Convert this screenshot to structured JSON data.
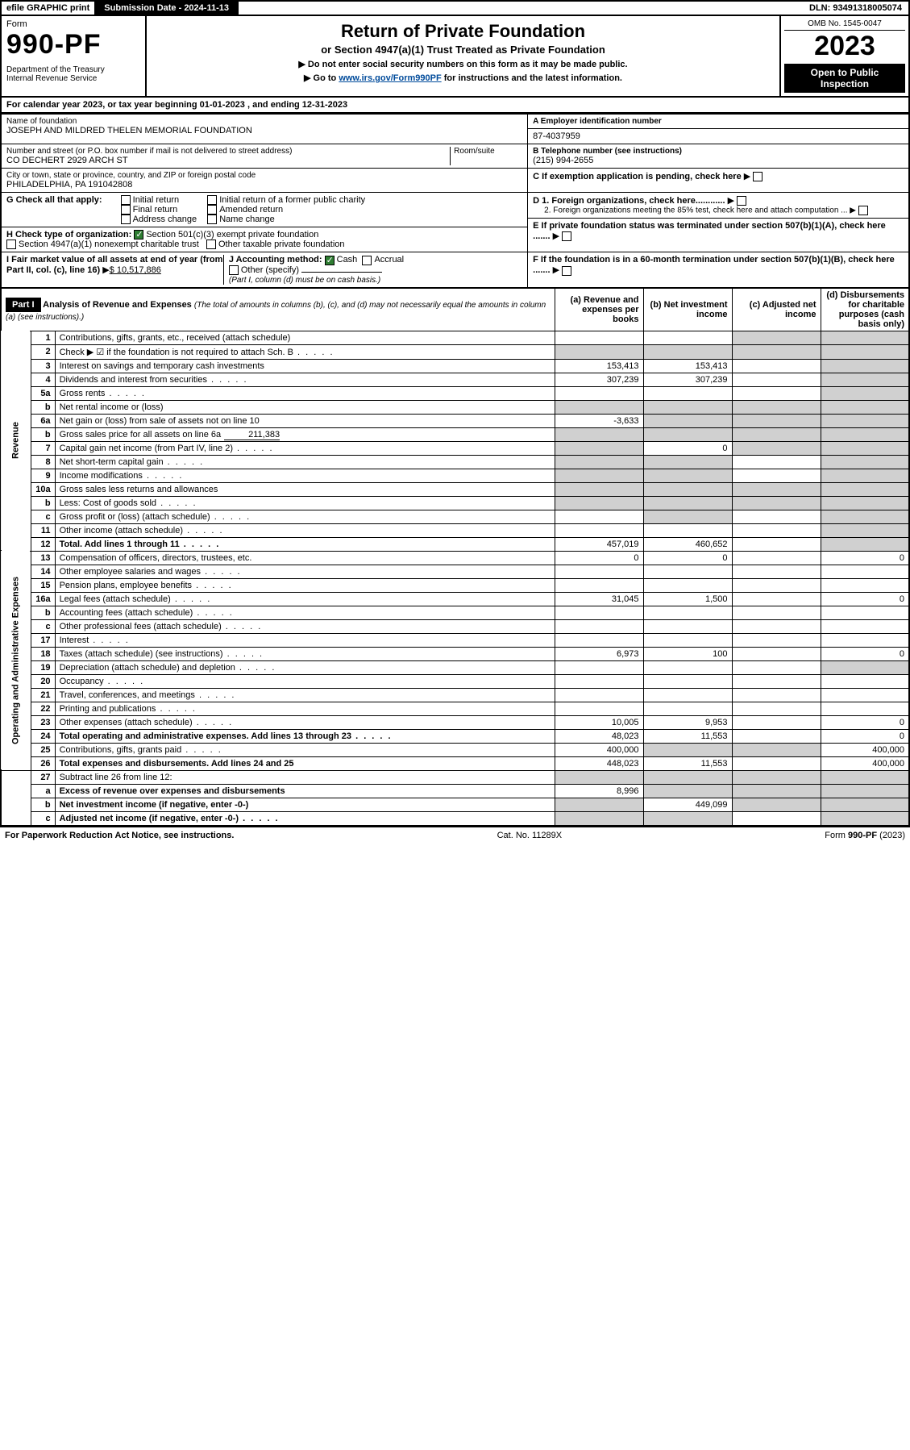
{
  "topbar": {
    "efile": "efile GRAPHIC print",
    "subdate_label": "Submission Date - 2024-11-13",
    "dln": "DLN: 93491318005074"
  },
  "header": {
    "form_label": "Form",
    "form_number": "990-PF",
    "dept": "Department of the Treasury\nInternal Revenue Service",
    "title": "Return of Private Foundation",
    "subtitle": "or Section 4947(a)(1) Trust Treated as Private Foundation",
    "instr1": "▶ Do not enter social security numbers on this form as it may be made public.",
    "instr2_pre": "▶ Go to ",
    "instr2_link": "www.irs.gov/Form990PF",
    "instr2_post": " for instructions and the latest information.",
    "omb": "OMB No. 1545-0047",
    "year": "2023",
    "open": "Open to Public Inspection"
  },
  "cal_year": "For calendar year 2023, or tax year beginning 01-01-2023                                , and ending 12-31-2023",
  "info": {
    "name_label": "Name of foundation",
    "name": "JOSEPH AND MILDRED THELEN MEMORIAL FOUNDATION",
    "ein_label": "A Employer identification number",
    "ein": "87-4037959",
    "addr_label": "Number and street (or P.O. box number if mail is not delivered to street address)",
    "addr": "CO DECHERT 2929 ARCH ST",
    "room_label": "Room/suite",
    "room": "",
    "phone_label": "B Telephone number (see instructions)",
    "phone": "(215) 994-2655",
    "city_label": "City or town, state or province, country, and ZIP or foreign postal code",
    "city": "PHILADELPHIA, PA  191042808",
    "c_label": "C If exemption application is pending, check here",
    "g_label": "G Check all that apply:",
    "g_initial": "Initial return",
    "g_final": "Final return",
    "g_addr": "Address change",
    "g_initial_former": "Initial return of a former public charity",
    "g_amended": "Amended return",
    "g_name": "Name change",
    "d1": "D 1. Foreign organizations, check here............",
    "d2": "2. Foreign organizations meeting the 85% test, check here and attach computation ...",
    "h_label": "H Check type of organization:",
    "h_501": "Section 501(c)(3) exempt private foundation",
    "h_4947": "Section 4947(a)(1) nonexempt charitable trust",
    "h_other": "Other taxable private foundation",
    "e_label": "E  If private foundation status was terminated under section 507(b)(1)(A), check here .......",
    "i_label": "I Fair market value of all assets at end of year (from Part II, col. (c), line 16)",
    "i_val": "$  10,517,886",
    "j_label": "J Accounting method:",
    "j_cash": "Cash",
    "j_accrual": "Accrual",
    "j_other": "Other (specify)",
    "j_note": "(Part I, column (d) must be on cash basis.)",
    "f_label": "F  If the foundation is in a 60-month termination under section 507(b)(1)(B), check here ......."
  },
  "part1": {
    "label": "Part I",
    "title": "Analysis of Revenue and Expenses",
    "title_note": "(The total of amounts in columns (b), (c), and (d) may not necessarily equal the amounts in column (a) (see instructions).)",
    "col_a": "(a)  Revenue and expenses per books",
    "col_b": "(b)  Net investment income",
    "col_c": "(c)  Adjusted net income",
    "col_d": "(d)  Disbursements for charitable purposes (cash basis only)"
  },
  "sections": {
    "revenue": "Revenue",
    "expenses": "Operating and Administrative Expenses"
  },
  "rows": [
    {
      "n": "1",
      "d": "Contributions, gifts, grants, etc., received (attach schedule)",
      "a": "",
      "b": "",
      "c": "shaded",
      "dv": "shaded"
    },
    {
      "n": "2",
      "d": "Check ▶ ☑ if the foundation is not required to attach Sch. B",
      "dots": true,
      "a": "shaded",
      "b": "shaded",
      "c": "shaded",
      "dv": "shaded"
    },
    {
      "n": "3",
      "d": "Interest on savings and temporary cash investments",
      "a": "153,413",
      "b": "153,413",
      "c": "",
      "dv": "shaded"
    },
    {
      "n": "4",
      "d": "Dividends and interest from securities",
      "dots": true,
      "a": "307,239",
      "b": "307,239",
      "c": "",
      "dv": "shaded"
    },
    {
      "n": "5a",
      "d": "Gross rents",
      "dots": true,
      "a": "",
      "b": "",
      "c": "",
      "dv": "shaded"
    },
    {
      "n": "b",
      "d": "Net rental income or (loss)",
      "sub": true,
      "a": "shaded",
      "b": "shaded",
      "c": "shaded",
      "dv": "shaded"
    },
    {
      "n": "6a",
      "d": "Net gain or (loss) from sale of assets not on line 10",
      "a": "-3,633",
      "b": "shaded",
      "c": "shaded",
      "dv": "shaded"
    },
    {
      "n": "b",
      "d": "Gross sales price for all assets on line 6a",
      "sub": true,
      "inline": "211,383",
      "a": "shaded",
      "b": "shaded",
      "c": "shaded",
      "dv": "shaded"
    },
    {
      "n": "7",
      "d": "Capital gain net income (from Part IV, line 2)",
      "dots": true,
      "a": "shaded",
      "b": "0",
      "c": "shaded",
      "dv": "shaded"
    },
    {
      "n": "8",
      "d": "Net short-term capital gain",
      "dots": true,
      "a": "shaded",
      "b": "shaded",
      "c": "",
      "dv": "shaded"
    },
    {
      "n": "9",
      "d": "Income modifications",
      "dots": true,
      "a": "shaded",
      "b": "shaded",
      "c": "",
      "dv": "shaded"
    },
    {
      "n": "10a",
      "d": "Gross sales less returns and allowances",
      "sub": true,
      "a": "shaded",
      "b": "shaded",
      "c": "shaded",
      "dv": "shaded"
    },
    {
      "n": "b",
      "d": "Less: Cost of goods sold",
      "dots": true,
      "sub": true,
      "a": "shaded",
      "b": "shaded",
      "c": "shaded",
      "dv": "shaded"
    },
    {
      "n": "c",
      "d": "Gross profit or (loss) (attach schedule)",
      "dots": true,
      "a": "",
      "b": "shaded",
      "c": "",
      "dv": "shaded"
    },
    {
      "n": "11",
      "d": "Other income (attach schedule)",
      "dots": true,
      "a": "",
      "b": "",
      "c": "",
      "dv": "shaded"
    },
    {
      "n": "12",
      "d": "Total. Add lines 1 through 11",
      "dots": true,
      "bold": true,
      "a": "457,019",
      "b": "460,652",
      "c": "",
      "dv": "shaded"
    },
    {
      "n": "13",
      "d": "Compensation of officers, directors, trustees, etc.",
      "a": "0",
      "b": "0",
      "c": "",
      "dv": "0",
      "sec": "exp"
    },
    {
      "n": "14",
      "d": "Other employee salaries and wages",
      "dots": true,
      "a": "",
      "b": "",
      "c": "",
      "dv": "",
      "sec": "exp"
    },
    {
      "n": "15",
      "d": "Pension plans, employee benefits",
      "dots": true,
      "a": "",
      "b": "",
      "c": "",
      "dv": "",
      "sec": "exp"
    },
    {
      "n": "16a",
      "d": "Legal fees (attach schedule)",
      "dots": true,
      "a": "31,045",
      "b": "1,500",
      "c": "",
      "dv": "0",
      "sec": "exp"
    },
    {
      "n": "b",
      "d": "Accounting fees (attach schedule)",
      "dots": true,
      "a": "",
      "b": "",
      "c": "",
      "dv": "",
      "sec": "exp"
    },
    {
      "n": "c",
      "d": "Other professional fees (attach schedule)",
      "dots": true,
      "a": "",
      "b": "",
      "c": "",
      "dv": "",
      "sec": "exp"
    },
    {
      "n": "17",
      "d": "Interest",
      "dots": true,
      "a": "",
      "b": "",
      "c": "",
      "dv": "",
      "sec": "exp"
    },
    {
      "n": "18",
      "d": "Taxes (attach schedule) (see instructions)",
      "dots": true,
      "a": "6,973",
      "b": "100",
      "c": "",
      "dv": "0",
      "sec": "exp"
    },
    {
      "n": "19",
      "d": "Depreciation (attach schedule) and depletion",
      "dots": true,
      "a": "",
      "b": "",
      "c": "",
      "dv": "shaded",
      "sec": "exp"
    },
    {
      "n": "20",
      "d": "Occupancy",
      "dots": true,
      "a": "",
      "b": "",
      "c": "",
      "dv": "",
      "sec": "exp"
    },
    {
      "n": "21",
      "d": "Travel, conferences, and meetings",
      "dots": true,
      "a": "",
      "b": "",
      "c": "",
      "dv": "",
      "sec": "exp"
    },
    {
      "n": "22",
      "d": "Printing and publications",
      "dots": true,
      "a": "",
      "b": "",
      "c": "",
      "dv": "",
      "sec": "exp"
    },
    {
      "n": "23",
      "d": "Other expenses (attach schedule)",
      "dots": true,
      "a": "10,005",
      "b": "9,953",
      "c": "",
      "dv": "0",
      "sec": "exp"
    },
    {
      "n": "24",
      "d": "Total operating and administrative expenses. Add lines 13 through 23",
      "dots": true,
      "bold": true,
      "a": "48,023",
      "b": "11,553",
      "c": "",
      "dv": "0",
      "sec": "exp"
    },
    {
      "n": "25",
      "d": "Contributions, gifts, grants paid",
      "dots": true,
      "a": "400,000",
      "b": "shaded",
      "c": "shaded",
      "dv": "400,000",
      "sec": "exp"
    },
    {
      "n": "26",
      "d": "Total expenses and disbursements. Add lines 24 and 25",
      "bold": true,
      "a": "448,023",
      "b": "11,553",
      "c": "",
      "dv": "400,000",
      "sec": "exp"
    },
    {
      "n": "27",
      "d": "Subtract line 26 from line 12:",
      "a": "shaded",
      "b": "shaded",
      "c": "shaded",
      "dv": "shaded"
    },
    {
      "n": "a",
      "d": "Excess of revenue over expenses and disbursements",
      "bold": true,
      "a": "8,996",
      "b": "shaded",
      "c": "shaded",
      "dv": "shaded"
    },
    {
      "n": "b",
      "d": "Net investment income (if negative, enter -0-)",
      "bold": true,
      "a": "shaded",
      "b": "449,099",
      "c": "shaded",
      "dv": "shaded"
    },
    {
      "n": "c",
      "d": "Adjusted net income (if negative, enter -0-)",
      "dots": true,
      "bold": true,
      "a": "shaded",
      "b": "shaded",
      "c": "",
      "dv": "shaded"
    }
  ],
  "footer": {
    "left": "For Paperwork Reduction Act Notice, see instructions.",
    "mid": "Cat. No. 11289X",
    "right": "Form 990-PF (2023)"
  },
  "colors": {
    "shaded": "#d0d0d0",
    "link": "#004b9b",
    "check": "#2e7d32"
  }
}
